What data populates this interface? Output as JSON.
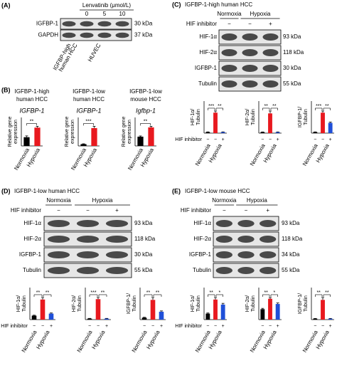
{
  "panel_a": {
    "label": "(A)",
    "treatment": "Lenvatinib (μmol/L)",
    "doses": [
      "0",
      "5",
      "10"
    ],
    "rows": [
      {
        "name": "IGFBP-1",
        "size": "30 kDa"
      },
      {
        "name": "GAPDH",
        "size": "37 kDa"
      }
    ],
    "lanes": [
      [
        "IGFBP-high",
        "human HCC"
      ],
      "HUVEC"
    ]
  },
  "panel_b": {
    "label": "(B)",
    "y_label": [
      "Relative gene",
      "expression"
    ],
    "conditions": [
      "Normoxia",
      "Hypoxia"
    ],
    "colors": [
      "#000000",
      "#e8191f"
    ],
    "charts": [
      {
        "title": [
          "IGFBP-1-high",
          "human HCC"
        ],
        "gene": "IGFBP-1",
        "values": [
          1,
          2.1
        ],
        "errors": [
          0.15,
          0.15
        ],
        "significance": [
          "**"
        ]
      },
      {
        "title": [
          "IGFBP-1-low",
          "human HCC"
        ],
        "gene": "IGFBP-1",
        "values": [
          0.1,
          1
        ],
        "errors": [
          0.02,
          0.1
        ],
        "significance": [
          "***"
        ]
      },
      {
        "title": [
          "IGFBP-1-low",
          "mouse HCC"
        ],
        "gene": "Igfbp-1",
        "values": [
          1,
          2
        ],
        "errors": [
          0.08,
          0.12
        ],
        "significance": [
          "**"
        ]
      }
    ]
  },
  "panels": [
    {
      "label": "(C)",
      "title": "IGFBP-1-high human HCC",
      "conditions": [
        "Normoxia",
        "Hypoxia"
      ],
      "inhibitor": "HIF inhibitor",
      "signs": [
        "−",
        "−",
        "+"
      ],
      "rows": [
        {
          "name": "HIF-1α",
          "size": "93 kDa"
        },
        {
          "name": "HIF-2α",
          "size": "118 kDa"
        },
        {
          "name": "IGFBP-1",
          "size": "30 kDa"
        },
        {
          "name": "Tubulin",
          "size": "55 kDa"
        }
      ],
      "colors": [
        "#000000",
        "#e8191f",
        "#1f4fd8"
      ],
      "charts": [
        {
          "y_label": [
            "HIF-1α/",
            "Tubulin"
          ],
          "values": [
            0.05,
            1,
            0.05
          ],
          "errors": [
            0.01,
            0.08,
            0.01
          ],
          "significance": [
            "***",
            "**"
          ]
        },
        {
          "y_label": [
            "HIF-2α/",
            "Tubulin"
          ],
          "values": [
            0.05,
            1,
            0.05
          ],
          "errors": [
            0.01,
            0.12,
            0.01
          ],
          "significance": [
            "**",
            "**"
          ]
        },
        {
          "y_label": [
            "IGFBP-1/",
            "Tubulin"
          ],
          "values": [
            0.05,
            1,
            0.5
          ],
          "errors": [
            0.01,
            0.08,
            0.04
          ],
          "significance": [
            "***",
            "**"
          ]
        }
      ]
    },
    {
      "label": "(D)",
      "title": "IGFBP-1-low human HCC",
      "conditions": [
        "Normoxia",
        "Hypoxia"
      ],
      "inhibitor": "HIF inhibitor",
      "signs": [
        "−",
        "−",
        "+"
      ],
      "rows": [
        {
          "name": "HIF-1α",
          "size": "93 kDa"
        },
        {
          "name": "HIF-2α",
          "size": "118 kDa"
        },
        {
          "name": "IGFBP-1",
          "size": "30 kDa"
        },
        {
          "name": "Tubulin",
          "size": "55 kDa"
        }
      ],
      "colors": [
        "#000000",
        "#e8191f",
        "#1f4fd8"
      ],
      "charts": [
        {
          "y_label": [
            "HIF-1α/",
            "Tubulin"
          ],
          "values": [
            0.2,
            1,
            0.3
          ],
          "errors": [
            0.02,
            0.1,
            0.03
          ],
          "significance": [
            "**",
            "**"
          ]
        },
        {
          "y_label": [
            "HIF-2α/",
            "Tubulin"
          ],
          "values": [
            0.05,
            1,
            0.05
          ],
          "errors": [
            0.01,
            0.08,
            0.01
          ],
          "significance": [
            "***",
            "**"
          ]
        },
        {
          "y_label": [
            "IGFBP-1/",
            "Tubulin"
          ],
          "values": [
            0.1,
            1,
            0.4
          ],
          "errors": [
            0.02,
            0.12,
            0.04
          ],
          "significance": [
            "**",
            "**"
          ]
        }
      ]
    },
    {
      "label": "(E)",
      "title": "IGFBP-1-low mouse HCC",
      "conditions": [
        "Normoxia",
        "Hypoxia"
      ],
      "inhibitor": "HIF inhibitor",
      "signs": [
        "−",
        "−",
        "+"
      ],
      "rows": [
        {
          "name": "HIF-1α",
          "size": "93 kDa"
        },
        {
          "name": "HIF-2α",
          "size": "118 kDa"
        },
        {
          "name": "IGFBP-1",
          "size": "34 kDa"
        },
        {
          "name": "Tubulin",
          "size": "55 kDa"
        }
      ],
      "colors": [
        "#000000",
        "#e8191f",
        "#1f4fd8"
      ],
      "charts": [
        {
          "y_label": [
            "HIF-1α/",
            "Tubulin"
          ],
          "values": [
            0.3,
            1,
            0.75
          ],
          "errors": [
            0.03,
            0.1,
            0.06
          ],
          "significance": [
            "**",
            "*"
          ]
        },
        {
          "y_label": [
            "HIF-2α/",
            "Tubulin"
          ],
          "values": [
            0.5,
            1,
            0.75
          ],
          "errors": [
            0.04,
            0.06,
            0.05
          ],
          "significance": [
            "**",
            "*"
          ]
        },
        {
          "y_label": [
            "IGFBP-1/",
            "Tubulin"
          ],
          "values": [
            0.05,
            1,
            0.05
          ],
          "errors": [
            0.01,
            0.12,
            0.01
          ],
          "significance": [
            "**",
            "**"
          ]
        }
      ]
    }
  ]
}
